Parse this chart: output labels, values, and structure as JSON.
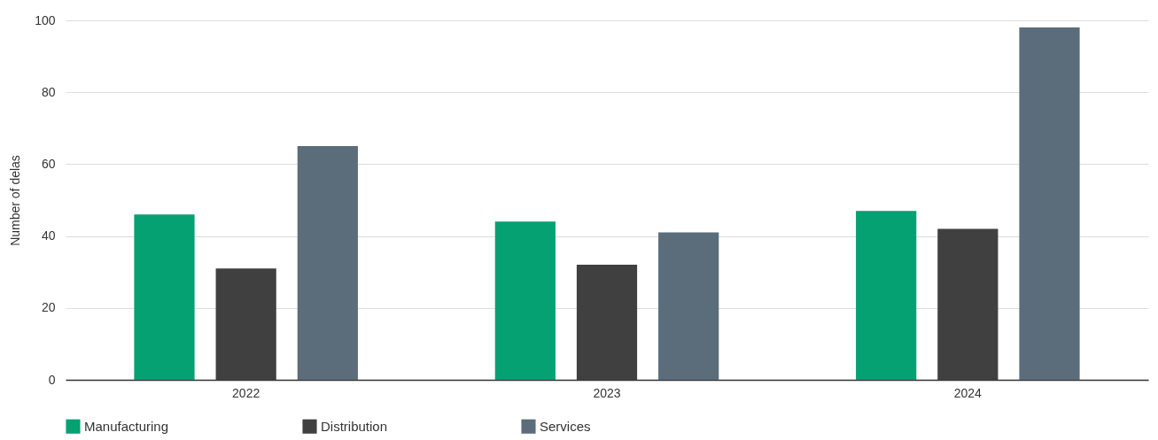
{
  "chart_data": {
    "type": "bar",
    "ylabel": "Number of delas",
    "categories": [
      "2022",
      "2023",
      "2024"
    ],
    "series": [
      {
        "name": "Manufacturing",
        "color": "#05a172",
        "values": [
          46,
          44,
          47
        ]
      },
      {
        "name": "Distribution",
        "color": "#404040",
        "values": [
          31,
          32,
          42
        ]
      },
      {
        "name": "Services",
        "color": "#5b6d7a",
        "values": [
          65,
          41,
          98
        ]
      }
    ],
    "ylim": [
      0,
      100
    ],
    "yticks": [
      0,
      20,
      40,
      60,
      80,
      100
    ],
    "grid": "y",
    "legend": "bottom"
  }
}
